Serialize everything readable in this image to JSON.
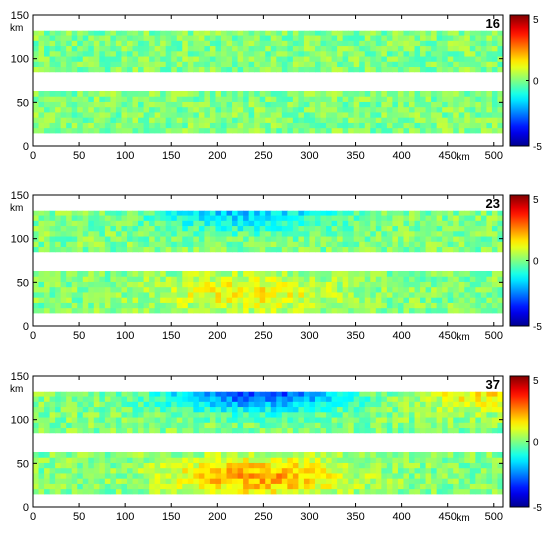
{
  "colors": {
    "colormap": [
      "#00008f",
      "#0000ff",
      "#0080ff",
      "#00ffff",
      "#80ff80",
      "#ffff00",
      "#ff8000",
      "#ff0000",
      "#800000"
    ]
  },
  "chart_data": [
    {
      "type": "heatmap",
      "panel_label": "16",
      "xlabel": "km",
      "ylabel": "km",
      "xlim": [
        0,
        510
      ],
      "ylim": [
        0,
        150
      ],
      "x_ticks": [
        "0",
        "50",
        "100",
        "150",
        "200",
        "250",
        "300",
        "350",
        "400",
        "450",
        "500"
      ],
      "y_ticks": [
        "0",
        "50",
        "100",
        "150"
      ],
      "strips": [
        [
          15,
          63
        ],
        [
          85,
          132
        ]
      ],
      "color_range": [
        -5,
        5
      ],
      "colorbar_ticks": [
        "5",
        "0",
        "-5"
      ],
      "anomalies": []
    },
    {
      "type": "heatmap",
      "panel_label": "23",
      "xlabel": "km",
      "ylabel": "km",
      "xlim": [
        0,
        510
      ],
      "ylim": [
        0,
        150
      ],
      "x_ticks": [
        "0",
        "50",
        "100",
        "150",
        "200",
        "250",
        "300",
        "350",
        "400",
        "450",
        "500"
      ],
      "y_ticks": [
        "0",
        "50",
        "100",
        "150"
      ],
      "strips": [
        [
          15,
          63
        ],
        [
          85,
          132
        ]
      ],
      "color_range": [
        -5,
        5
      ],
      "colorbar_ticks": [
        "5",
        "0",
        "-5"
      ],
      "anomalies": [
        {
          "x": 230,
          "y": 128,
          "value": -1.8
        },
        {
          "x": 230,
          "y": 35,
          "value": 1.3
        }
      ]
    },
    {
      "type": "heatmap",
      "panel_label": "37",
      "xlabel": "km",
      "ylabel": "km",
      "xlim": [
        0,
        510
      ],
      "ylim": [
        0,
        150
      ],
      "x_ticks": [
        "0",
        "50",
        "100",
        "150",
        "200",
        "250",
        "300",
        "350",
        "400",
        "450",
        "500"
      ],
      "y_ticks": [
        "0",
        "50",
        "100",
        "150"
      ],
      "strips": [
        [
          15,
          63
        ],
        [
          85,
          132
        ]
      ],
      "color_range": [
        -5,
        5
      ],
      "colorbar_ticks": [
        "5",
        "0",
        "-5"
      ],
      "anomalies": [
        {
          "x": 240,
          "y": 130,
          "value": -3.2
        },
        {
          "x": 240,
          "y": 32,
          "value": 2.2
        },
        {
          "x": 500,
          "y": 128,
          "value": 1.4
        }
      ]
    }
  ]
}
